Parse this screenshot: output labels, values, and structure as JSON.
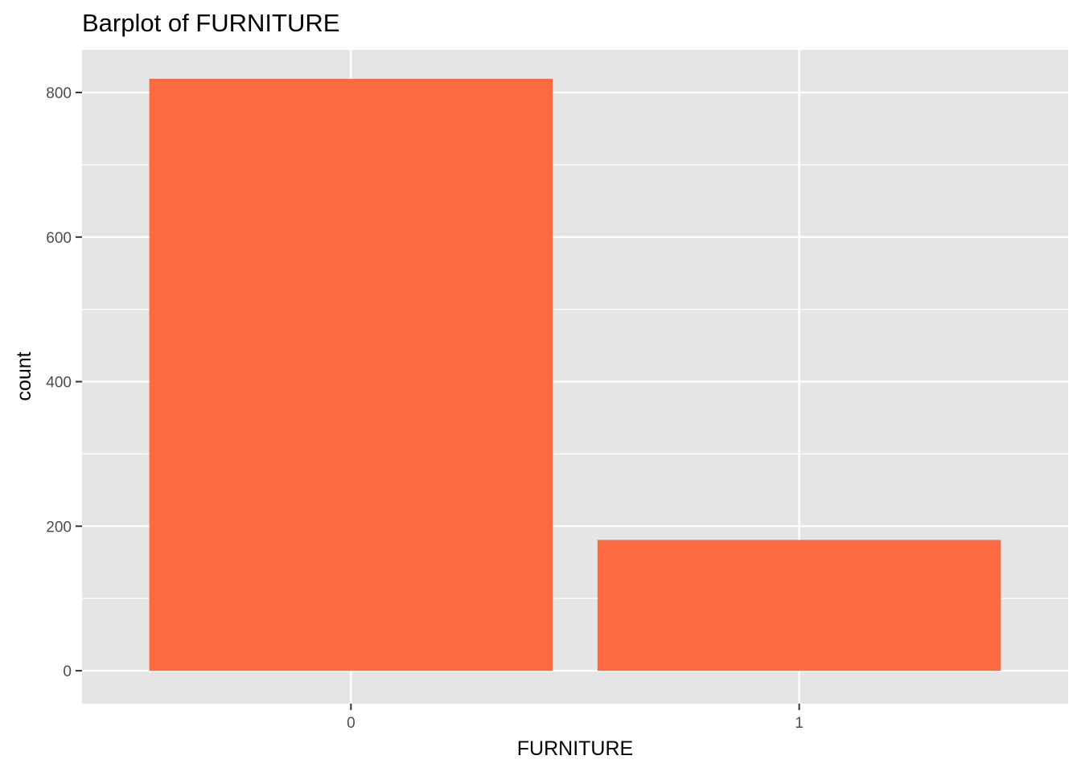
{
  "chart_data": {
    "type": "bar",
    "title": "Barplot of FURNITURE",
    "xlabel": "FURNITURE",
    "ylabel": "count",
    "categories": [
      "0",
      "1"
    ],
    "values": [
      819,
      181
    ],
    "ylim": [
      -45.5,
      859
    ],
    "yticks": [
      0,
      200,
      400,
      600,
      800
    ],
    "grid": true,
    "colors": {
      "bar": "#FC6A42",
      "panel": "#E5E5E5",
      "grid": "#FFFFFF",
      "tick": "#333333"
    }
  }
}
